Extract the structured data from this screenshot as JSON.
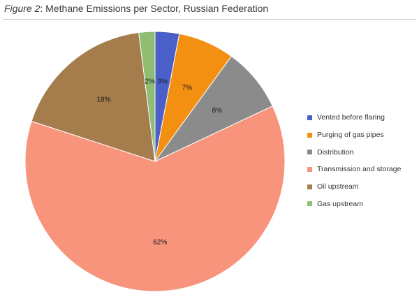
{
  "title": {
    "prefix": "Figure 2",
    "separator": ": ",
    "text": "Methane Emissions per Sector, Russian Federation"
  },
  "chart_data": {
    "type": "pie",
    "start_angle_deg": 0,
    "direction": "clockwise",
    "legend_position": "right",
    "slices": [
      {
        "name": "Vented before flaring",
        "value": 3,
        "label": "3%",
        "color": "#4a5fc8"
      },
      {
        "name": "Purging of gas pipes",
        "value": 7,
        "label": "7%",
        "color": "#f39011"
      },
      {
        "name": "Distribution",
        "value": 8,
        "label": "8%",
        "color": "#8b8b8b"
      },
      {
        "name": "Transmission and storage",
        "value": 62,
        "label": "62%",
        "color": "#f7947b"
      },
      {
        "name": "Oil upstream",
        "value": 18,
        "label": "18%",
        "color": "#a57c4c"
      },
      {
        "name": "Gas upstream",
        "value": 2,
        "label": "2%",
        "color": "#8fbd73"
      }
    ]
  }
}
